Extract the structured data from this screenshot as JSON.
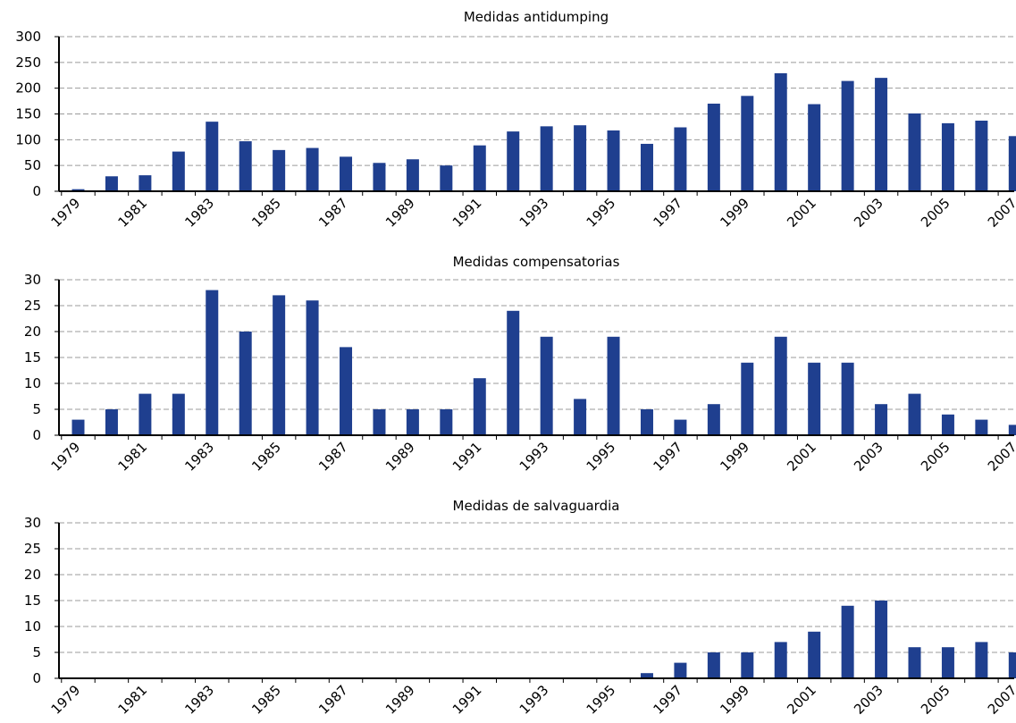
{
  "colors": {
    "bar": "#1F3F8F",
    "grid": "#9B9B9B",
    "axis": "#000000"
  },
  "chart_data": [
    {
      "type": "bar",
      "title": "Medidas antidumping",
      "categories": [
        "1979",
        "1980",
        "1981",
        "1982",
        "1983",
        "1984",
        "1985",
        "1986",
        "1987",
        "1988",
        "1989",
        "1990",
        "1991",
        "1992",
        "1993",
        "1994",
        "1995",
        "1996",
        "1997",
        "1998",
        "1999",
        "2000",
        "2001",
        "2002",
        "2003",
        "2004",
        "2005",
        "2006",
        "2007"
      ],
      "tick_labels": [
        "1979",
        "1981",
        "1983",
        "1985",
        "1987",
        "1989",
        "1991",
        "1993",
        "1995",
        "1997",
        "1999",
        "2001",
        "2003",
        "2005",
        "2007"
      ],
      "values": [
        4,
        29,
        31,
        77,
        135,
        97,
        80,
        84,
        67,
        55,
        62,
        50,
        89,
        116,
        126,
        128,
        118,
        92,
        124,
        170,
        185,
        229,
        169,
        214,
        220,
        151,
        132,
        137,
        107
      ],
      "ylim": [
        0,
        300
      ],
      "yticks": [
        0,
        50,
        100,
        150,
        200,
        250,
        300
      ],
      "grid": true
    },
    {
      "type": "bar",
      "title": "Medidas compensatorias",
      "categories": [
        "1979",
        "1980",
        "1981",
        "1982",
        "1983",
        "1984",
        "1985",
        "1986",
        "1987",
        "1988",
        "1989",
        "1990",
        "1991",
        "1992",
        "1993",
        "1994",
        "1995",
        "1996",
        "1997",
        "1998",
        "1999",
        "2000",
        "2001",
        "2002",
        "2003",
        "2004",
        "2005",
        "2006",
        "2007"
      ],
      "tick_labels": [
        "1979",
        "1981",
        "1983",
        "1985",
        "1987",
        "1989",
        "1991",
        "1993",
        "1995",
        "1997",
        "1999",
        "2001",
        "2003",
        "2005",
        "2007"
      ],
      "values": [
        3,
        5,
        8,
        8,
        28,
        20,
        27,
        26,
        17,
        5,
        5,
        5,
        11,
        24,
        19,
        7,
        19,
        5,
        3,
        6,
        14,
        19,
        14,
        14,
        6,
        8,
        4,
        3,
        2
      ],
      "ylim": [
        0,
        30
      ],
      "yticks": [
        0,
        5,
        10,
        15,
        20,
        25,
        30
      ],
      "grid": true
    },
    {
      "type": "bar",
      "title": "Medidas de salvaguardia",
      "categories": [
        "1979",
        "1980",
        "1981",
        "1982",
        "1983",
        "1984",
        "1985",
        "1986",
        "1987",
        "1988",
        "1989",
        "1990",
        "1991",
        "1992",
        "1993",
        "1994",
        "1995",
        "1996",
        "1997",
        "1998",
        "1999",
        "2000",
        "2001",
        "2002",
        "2003",
        "2004",
        "2005",
        "2006",
        "2007"
      ],
      "tick_labels": [
        "1979",
        "1981",
        "1983",
        "1985",
        "1987",
        "1989",
        "1991",
        "1993",
        "1995",
        "1997",
        "1999",
        "2001",
        "2003",
        "2005",
        "2007"
      ],
      "values": [
        0,
        0,
        0,
        0,
        0,
        0,
        0,
        0,
        0,
        0,
        0,
        0,
        0,
        0,
        0,
        0,
        0,
        1,
        3,
        5,
        5,
        7,
        9,
        14,
        15,
        6,
        6,
        7,
        5
      ],
      "ylim": [
        0,
        30
      ],
      "yticks": [
        0,
        5,
        10,
        15,
        20,
        25,
        30
      ],
      "grid": true
    }
  ]
}
